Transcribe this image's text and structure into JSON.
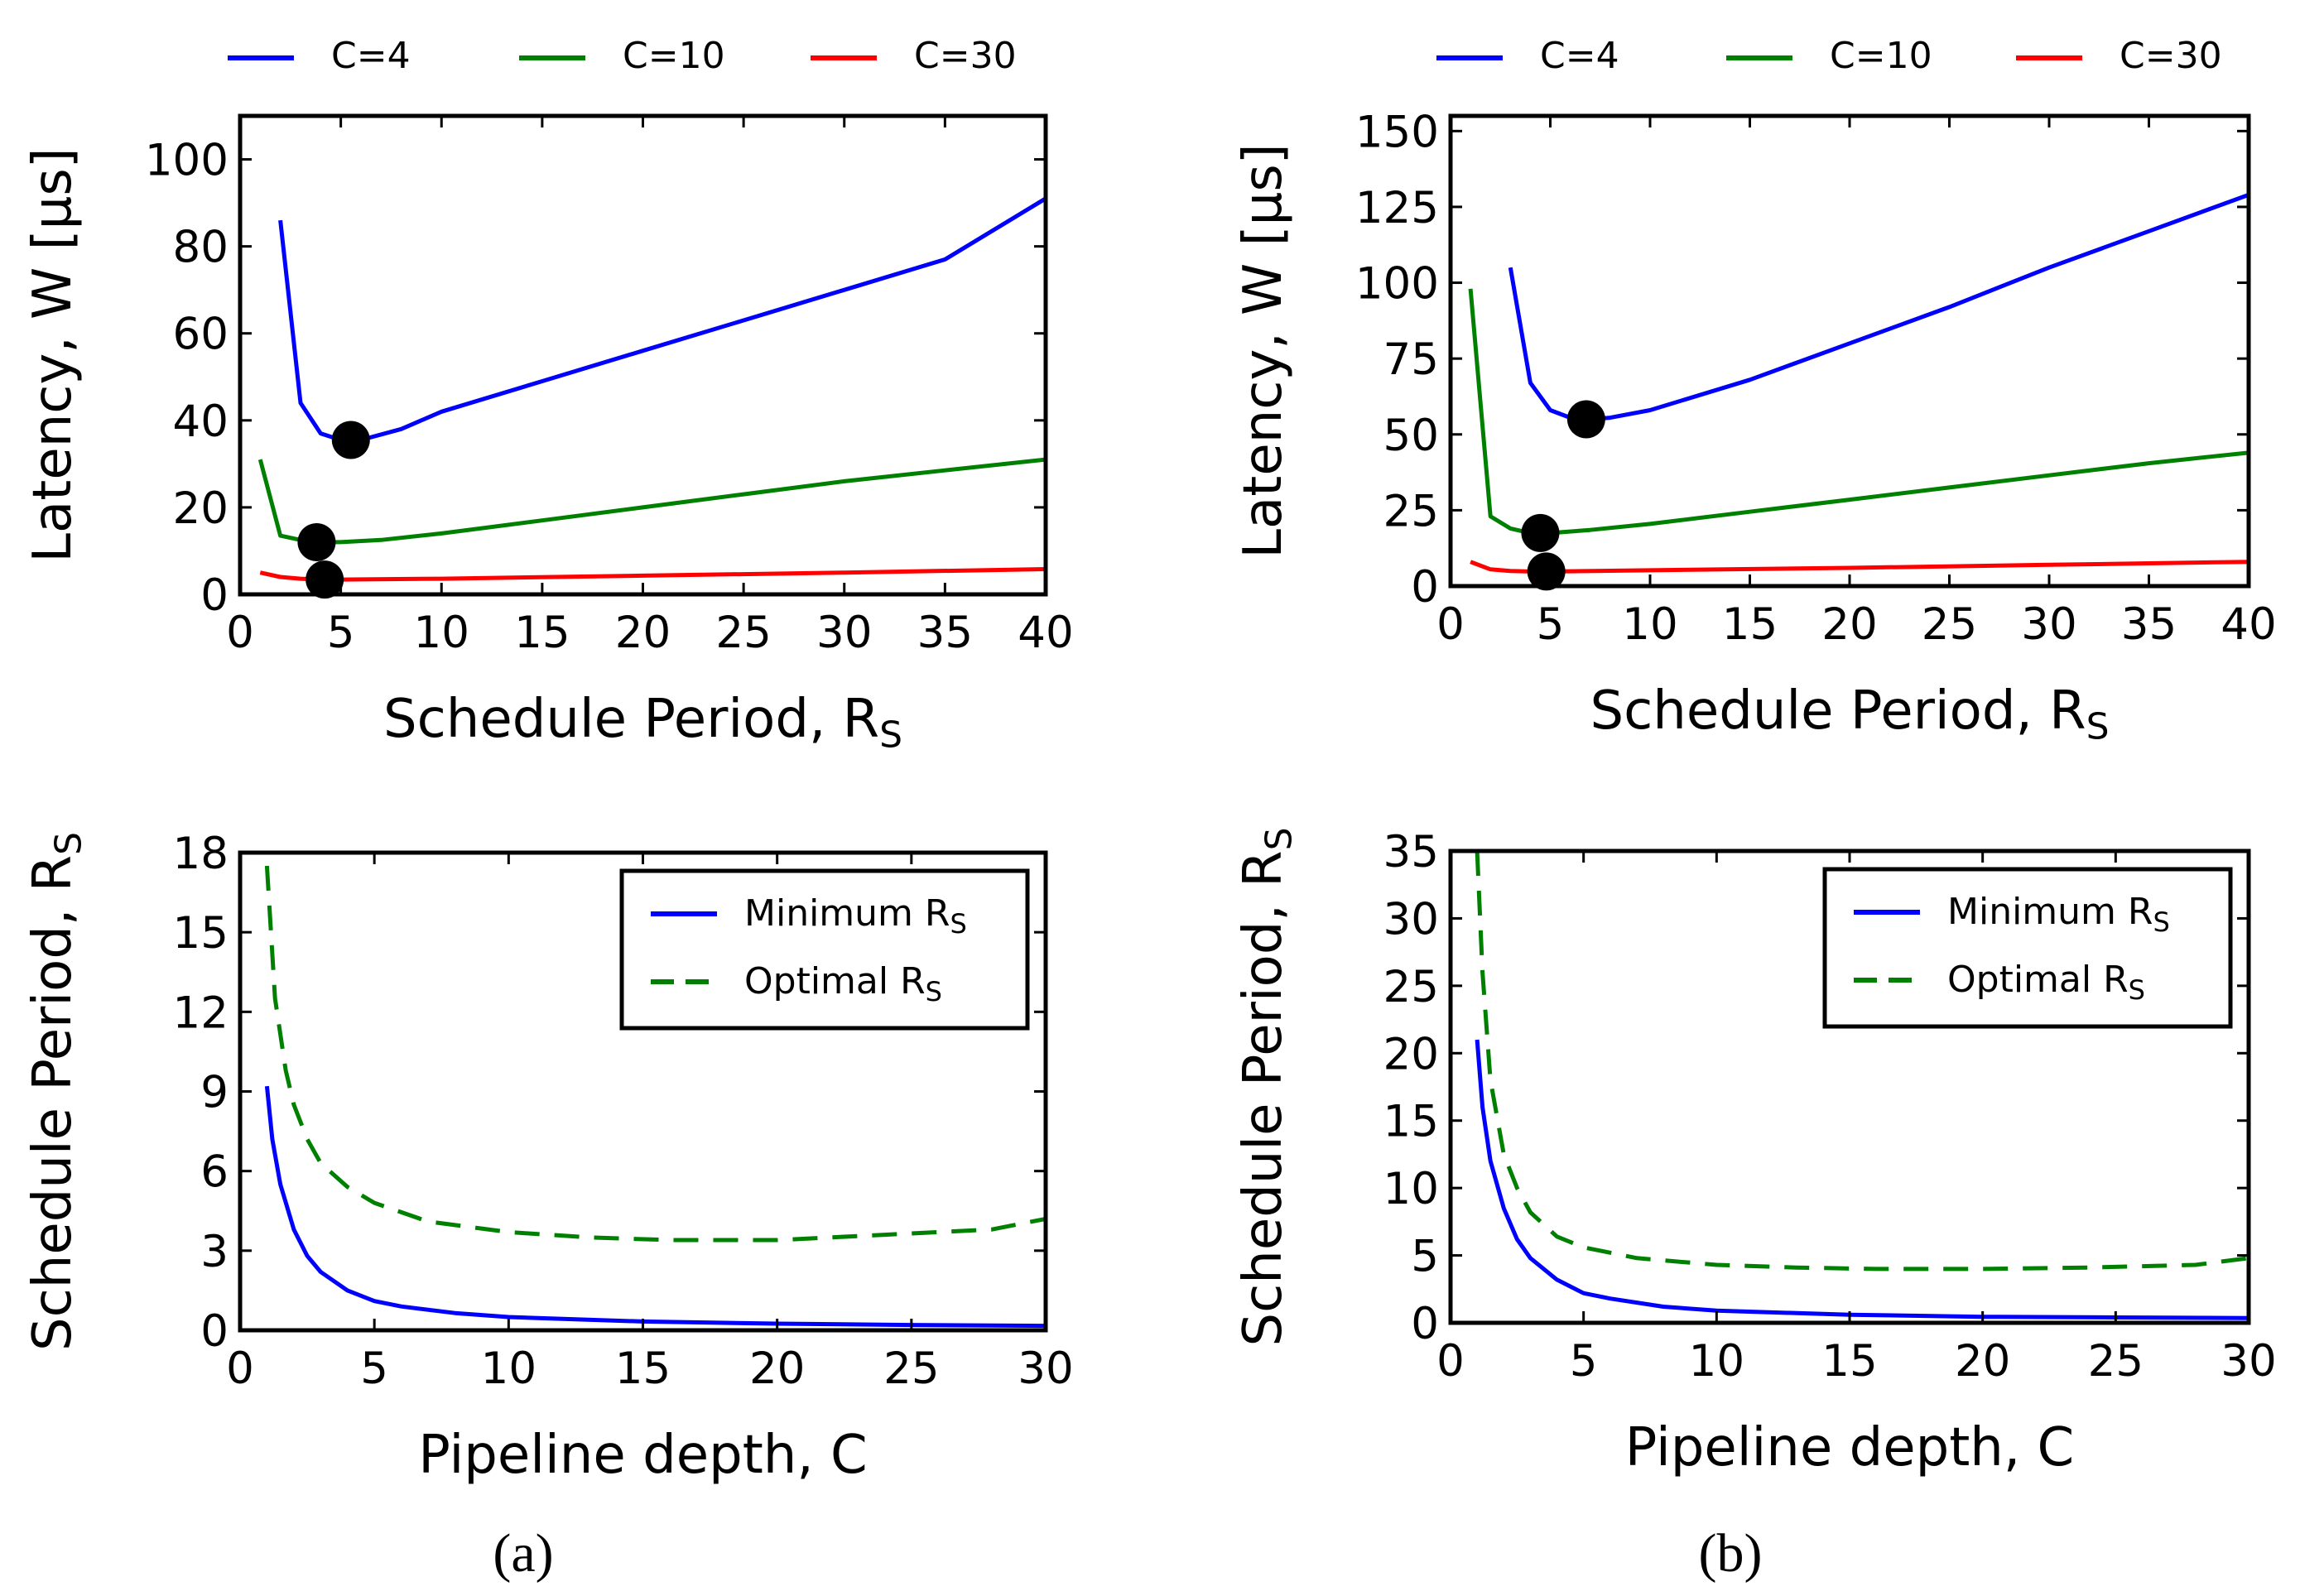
{
  "chart_data": [
    {
      "id": "a_top",
      "type": "line",
      "xlabel": "Schedule Period, ",
      "xlabel_sub": "S",
      "xlabel_main": "R",
      "ylabel": "Latency, W [µs]",
      "xlim": [
        0,
        40
      ],
      "ylim": [
        0,
        110
      ],
      "xticks": [
        0,
        5,
        10,
        15,
        20,
        25,
        30,
        35,
        40
      ],
      "yticks": [
        0,
        20,
        40,
        60,
        80,
        100
      ],
      "legend_position": "above",
      "series": [
        {
          "name": "C=4",
          "color": "#0000ff",
          "dash": "solid",
          "x": [
            2,
            3,
            4,
            5,
            6,
            8,
            10,
            15,
            20,
            25,
            30,
            35,
            40
          ],
          "y": [
            86,
            44,
            37,
            35.5,
            35.5,
            38,
            42,
            49,
            56,
            63,
            70,
            77,
            91
          ]
        },
        {
          "name": "C=10",
          "color": "#008000",
          "dash": "solid",
          "x": [
            1,
            2,
            3,
            4,
            5,
            7,
            10,
            15,
            20,
            25,
            30,
            35,
            40
          ],
          "y": [
            31,
            13.5,
            12.5,
            12,
            12,
            12.5,
            14,
            17,
            20,
            23,
            26,
            28.5,
            31
          ]
        },
        {
          "name": "C=30",
          "color": "#ff0000",
          "dash": "solid",
          "x": [
            1,
            2,
            3,
            4,
            5,
            10,
            20,
            30,
            40
          ],
          "y": [
            5,
            4,
            3.6,
            3.4,
            3.4,
            3.6,
            4.3,
            5,
            5.8
          ]
        }
      ],
      "markers": [
        {
          "x": 5.5,
          "y": 35.5
        },
        {
          "x": 3.8,
          "y": 12
        },
        {
          "x": 4.2,
          "y": 3.4
        }
      ]
    },
    {
      "id": "b_top",
      "type": "line",
      "xlabel_main": "R",
      "xlabel": "Schedule Period, ",
      "xlabel_sub": "S",
      "ylabel": "Latency, W [µs]",
      "xlim": [
        0,
        40
      ],
      "ylim": [
        0,
        155
      ],
      "xticks": [
        0,
        5,
        10,
        15,
        20,
        25,
        30,
        35,
        40
      ],
      "yticks": [
        0,
        25,
        50,
        75,
        100,
        125,
        150
      ],
      "legend_position": "above",
      "series": [
        {
          "name": "C=4",
          "color": "#0000ff",
          "dash": "solid",
          "x": [
            3,
            4,
            5,
            6,
            7,
            8,
            10,
            15,
            20,
            25,
            30,
            35,
            40
          ],
          "y": [
            105,
            67,
            58,
            55.5,
            55,
            55.5,
            58,
            68,
            80,
            92,
            105,
            117,
            129
          ]
        },
        {
          "name": "C=10",
          "color": "#008000",
          "dash": "solid",
          "x": [
            1,
            2,
            3,
            4,
            5,
            7,
            10,
            15,
            20,
            25,
            30,
            35,
            40
          ],
          "y": [
            98,
            23,
            19,
            17.5,
            17.5,
            18.5,
            20.5,
            24.5,
            28.5,
            32.5,
            36.5,
            40.5,
            44
          ]
        },
        {
          "name": "C=30",
          "color": "#ff0000",
          "dash": "solid",
          "x": [
            1,
            2,
            3,
            4,
            5,
            10,
            20,
            30,
            40
          ],
          "y": [
            8,
            5.5,
            5,
            4.8,
            4.8,
            5.2,
            6,
            7,
            8
          ]
        }
      ],
      "markers": [
        {
          "x": 6.8,
          "y": 55
        },
        {
          "x": 4.5,
          "y": 17.5
        },
        {
          "x": 4.8,
          "y": 4.8
        }
      ]
    },
    {
      "id": "a_bottom",
      "type": "line",
      "xlabel": "Pipeline depth, C",
      "ylabel": "Schedule Period, ",
      "ylabel_main": "R",
      "ylabel_sub": "S",
      "xlim": [
        0,
        30
      ],
      "ylim": [
        0,
        18
      ],
      "xticks": [
        0,
        5,
        10,
        15,
        20,
        25,
        30
      ],
      "yticks": [
        0,
        3,
        6,
        9,
        12,
        15,
        18
      ],
      "legend_position": "upper right",
      "series": [
        {
          "name": "Minimum ",
          "name_main": "R",
          "name_sub": "S",
          "color": "#0000ff",
          "dash": "solid",
          "x": [
            1,
            1.2,
            1.5,
            2,
            2.5,
            3,
            4,
            5,
            6,
            8,
            10,
            15,
            20,
            25,
            30
          ],
          "y": [
            9.2,
            7.2,
            5.5,
            3.8,
            2.8,
            2.2,
            1.5,
            1.1,
            0.9,
            0.65,
            0.5,
            0.33,
            0.25,
            0.2,
            0.17
          ]
        },
        {
          "name": "Optimal ",
          "name_main": "R",
          "name_sub": "S",
          "color": "#008000",
          "dash": "dashed",
          "x": [
            1,
            1.3,
            1.7,
            2,
            2.5,
            3,
            4,
            5,
            7,
            10,
            13,
            16,
            20,
            24,
            28,
            30
          ],
          "y": [
            17.5,
            12.5,
            9.8,
            8.5,
            7.2,
            6.3,
            5.4,
            4.8,
            4.1,
            3.7,
            3.5,
            3.4,
            3.4,
            3.6,
            3.8,
            4.2
          ]
        }
      ]
    },
    {
      "id": "b_bottom",
      "type": "line",
      "xlabel": "Pipeline depth, C",
      "ylabel": "Schedule Period, ",
      "ylabel_main": "R",
      "ylabel_sub": "S",
      "xlim": [
        0,
        30
      ],
      "ylim": [
        0,
        35
      ],
      "xticks": [
        0,
        5,
        10,
        15,
        20,
        25,
        30
      ],
      "yticks": [
        0,
        5,
        10,
        15,
        20,
        25,
        30,
        35
      ],
      "legend_position": "upper right",
      "series": [
        {
          "name": "Minimum ",
          "name_main": "R",
          "name_sub": "S",
          "color": "#0000ff",
          "dash": "solid",
          "x": [
            1,
            1.2,
            1.5,
            2,
            2.5,
            3,
            4,
            5,
            6,
            8,
            10,
            15,
            20,
            25,
            30
          ],
          "y": [
            21,
            16,
            12,
            8.5,
            6.2,
            4.8,
            3.2,
            2.2,
            1.8,
            1.2,
            0.9,
            0.6,
            0.45,
            0.4,
            0.35
          ]
        },
        {
          "name": "Optimal ",
          "name_main": "R",
          "name_sub": "S",
          "color": "#008000",
          "dash": "dashed",
          "x": [
            1,
            1.2,
            1.5,
            2,
            2.5,
            3,
            4,
            5,
            7,
            10,
            13,
            16,
            20,
            24,
            28,
            30
          ],
          "y": [
            35,
            26,
            18,
            12.5,
            10,
            8.2,
            6.4,
            5.6,
            4.8,
            4.3,
            4.1,
            4.0,
            4.0,
            4.1,
            4.3,
            4.8
          ]
        }
      ]
    }
  ],
  "captions": {
    "a": "(a)",
    "b": "(b)"
  }
}
